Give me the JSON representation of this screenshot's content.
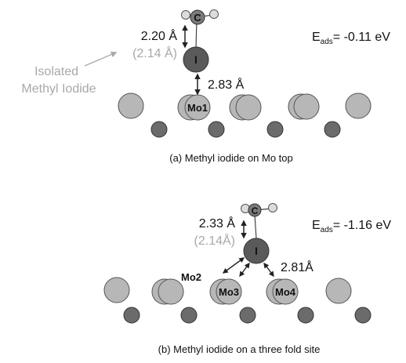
{
  "panel_a": {
    "caption": "(a) Methyl iodide on Mo top",
    "c_label": "C",
    "i_label": "I",
    "mo_label": "Mo1",
    "ci_distance": "2.20 Å",
    "ci_isolated": "(2.14 Å)",
    "i_mo_distance": "2.83 Å",
    "isolated_note_line1": "Isolated",
    "isolated_note_line2": "Methyl Iodide",
    "e_ads_prefix": "E",
    "e_ads_sub": "ads",
    "e_ads_value": "= -0.11 eV"
  },
  "panel_b": {
    "caption": "(b) Methyl iodide on a three fold site",
    "c_label": "C",
    "i_label": "I",
    "mo2_label": "Mo2",
    "mo3_label": "Mo3",
    "mo4_label": "Mo4",
    "ci_distance": "2.33 Å",
    "ci_isolated": "(2.14Å)",
    "i_mo_distance": "2.81Å",
    "e_ads_prefix": "E",
    "e_ads_sub": "ads",
    "e_ads_value": "= -1.16 eV"
  },
  "colors": {
    "mo_light": "#b7b7b7",
    "mo_dark": "#6b6b6b",
    "iodine": "#5a5a5a",
    "carbon": "#7a7a7a",
    "hydrogen": "#dcdcdc",
    "gray_text": "#a8a8a8"
  }
}
